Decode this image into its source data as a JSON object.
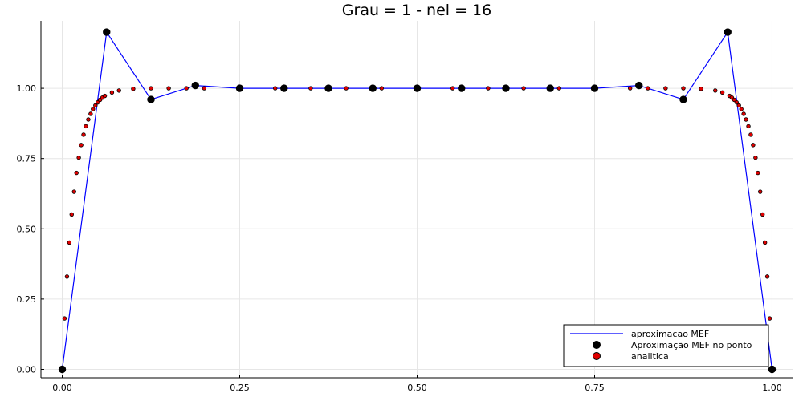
{
  "chart_data": {
    "type": "line",
    "title": "Grau = 1 - nel = 16",
    "xlabel": "",
    "ylabel": "",
    "xlim": [
      -0.03,
      1.03
    ],
    "ylim": [
      -0.03,
      1.24
    ],
    "xticks": [
      0.0,
      0.25,
      0.5,
      0.75,
      1.0
    ],
    "xtick_labels": [
      "0.00",
      "0.25",
      "0.50",
      "0.75",
      "1.00"
    ],
    "yticks": [
      0.0,
      0.25,
      0.5,
      0.75,
      1.0
    ],
    "ytick_labels": [
      "0.00",
      "0.25",
      "0.50",
      "0.75",
      "1.00"
    ],
    "grid": true,
    "legend_position": "bottom-right",
    "series": [
      {
        "name": "aproximacao MEF",
        "kind": "line",
        "color": "#0000ff",
        "x": [
          0.0,
          0.0625,
          0.125,
          0.1875,
          0.25,
          0.3125,
          0.375,
          0.4375,
          0.5,
          0.5625,
          0.625,
          0.6875,
          0.75,
          0.8125,
          0.875,
          0.9375,
          1.0
        ],
        "y": [
          0.0,
          1.2,
          0.96,
          1.01,
          1.0,
          1.0,
          1.0,
          1.0,
          1.0,
          1.0,
          1.0,
          1.0,
          1.0,
          1.01,
          0.96,
          1.2,
          0.0
        ]
      },
      {
        "name": "Aproximação MEF no ponto",
        "kind": "scatter",
        "color": "#000000",
        "x": [
          0.0,
          0.0625,
          0.125,
          0.1875,
          0.25,
          0.3125,
          0.375,
          0.4375,
          0.5,
          0.5625,
          0.625,
          0.6875,
          0.75,
          0.8125,
          0.875,
          0.9375,
          1.0
        ],
        "y": [
          0.0,
          1.2,
          0.96,
          1.01,
          1.0,
          1.0,
          1.0,
          1.0,
          1.0,
          1.0,
          1.0,
          1.0,
          1.0,
          1.01,
          0.96,
          1.2,
          0.0
        ]
      },
      {
        "name": "analitica",
        "kind": "scatter",
        "color": "#e00000",
        "x": [
          0.0,
          0.0033,
          0.0067,
          0.01,
          0.0133,
          0.0167,
          0.02,
          0.0233,
          0.0267,
          0.03,
          0.0333,
          0.0367,
          0.04,
          0.0433,
          0.0467,
          0.05,
          0.0533,
          0.0567,
          0.06,
          0.07,
          0.08,
          0.1,
          0.125,
          0.15,
          0.175,
          0.2,
          0.25,
          0.3,
          0.35,
          0.4,
          0.45,
          0.5,
          0.55,
          0.6,
          0.65,
          0.7,
          0.75,
          0.8,
          0.825,
          0.85,
          0.875,
          0.9,
          0.92,
          0.93,
          0.94,
          0.9433,
          0.9467,
          0.95,
          0.9533,
          0.9567,
          0.96,
          0.9633,
          0.9667,
          0.97,
          0.9733,
          0.9767,
          0.98,
          0.9833,
          0.9867,
          0.99,
          0.9933,
          0.9967,
          1.0
        ],
        "y": [
          0.0,
          0.181,
          0.33,
          0.451,
          0.551,
          0.632,
          0.699,
          0.753,
          0.798,
          0.835,
          0.865,
          0.889,
          0.909,
          0.926,
          0.939,
          0.95,
          0.959,
          0.967,
          0.973,
          0.985,
          0.992,
          0.998,
          1.0,
          1.0,
          1.0,
          1.0,
          1.0,
          1.0,
          1.0,
          1.0,
          1.0,
          1.0,
          1.0,
          1.0,
          1.0,
          1.0,
          1.0,
          1.0,
          1.0,
          1.0,
          1.0,
          0.998,
          0.992,
          0.985,
          0.973,
          0.967,
          0.959,
          0.95,
          0.939,
          0.926,
          0.909,
          0.889,
          0.865,
          0.835,
          0.798,
          0.753,
          0.699,
          0.632,
          0.551,
          0.451,
          0.33,
          0.181,
          0.0
        ]
      }
    ]
  }
}
